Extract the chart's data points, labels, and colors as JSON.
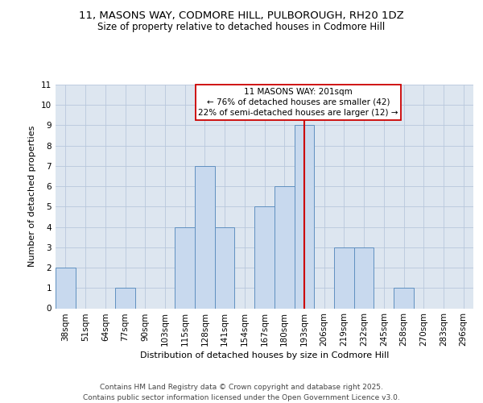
{
  "title_line1": "11, MASONS WAY, CODMORE HILL, PULBOROUGH, RH20 1DZ",
  "title_line2": "Size of property relative to detached houses in Codmore Hill",
  "xlabel": "Distribution of detached houses by size in Codmore Hill",
  "ylabel": "Number of detached properties",
  "categories": [
    "38sqm",
    "51sqm",
    "64sqm",
    "77sqm",
    "90sqm",
    "103sqm",
    "115sqm",
    "128sqm",
    "141sqm",
    "154sqm",
    "167sqm",
    "180sqm",
    "193sqm",
    "206sqm",
    "219sqm",
    "232sqm",
    "245sqm",
    "258sqm",
    "270sqm",
    "283sqm",
    "296sqm"
  ],
  "values": [
    2,
    0,
    0,
    1,
    0,
    0,
    4,
    7,
    4,
    0,
    5,
    6,
    9,
    0,
    3,
    3,
    0,
    1,
    0,
    0,
    0
  ],
  "bar_color": "#c8d9ee",
  "bar_edge_color": "#6090c0",
  "vline_x": 12,
  "vline_color": "#cc0000",
  "annotation_text": "11 MASONS WAY: 201sqm\n← 76% of detached houses are smaller (42)\n22% of semi-detached houses are larger (12) →",
  "annotation_box_color": "#cc0000",
  "annotation_fontsize": 7.5,
  "ylim": [
    0,
    11
  ],
  "yticks": [
    0,
    1,
    2,
    3,
    4,
    5,
    6,
    7,
    8,
    9,
    10,
    11
  ],
  "grid_color": "#b8c8dc",
  "bg_color": "#dde6f0",
  "footer_text": "Contains HM Land Registry data © Crown copyright and database right 2025.\nContains public sector information licensed under the Open Government Licence v3.0.",
  "title_fontsize": 9.5,
  "subtitle_fontsize": 8.5,
  "xlabel_fontsize": 8,
  "ylabel_fontsize": 8,
  "tick_fontsize": 7.5,
  "footer_fontsize": 6.5
}
